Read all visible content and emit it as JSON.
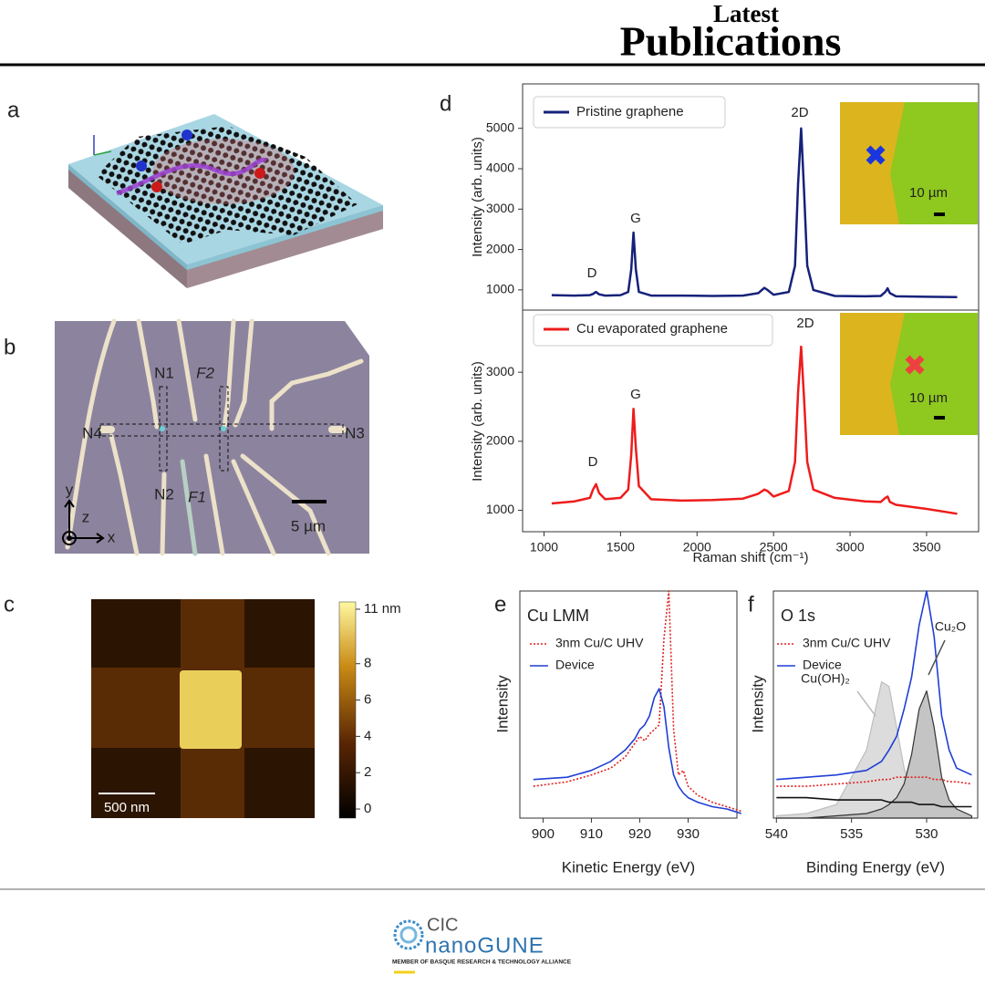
{
  "header": {
    "line1": "Latest",
    "line2": "Publications"
  },
  "panel_labels": [
    "a",
    "b",
    "c",
    "d",
    "e",
    "f"
  ],
  "panel_b": {
    "labels": [
      "N1",
      "F2",
      "N4",
      "N3",
      "N2",
      "F1"
    ],
    "scale": "5 µm",
    "axes": [
      "y",
      "z",
      "x"
    ]
  },
  "panel_c": {
    "scale": "500 nm",
    "colorbar": {
      "lim": [
        -0.5,
        11.4
      ],
      "ticks": [
        0,
        2,
        4,
        6,
        8,
        {
          "value": 11,
          "label": "11 nm"
        }
      ]
    }
  },
  "footer": {
    "brand_top": "CIC",
    "brand": "nanoGUNE",
    "tagline": "MEMBER OF BASQUE RESEARCH & TECHNOLOGY ALLIANCE"
  },
  "chart_data": [
    {
      "type": "line",
      "ylabel": "Intensity (arb. units)",
      "xlim": [
        860,
        3840
      ],
      "ylim": [
        500,
        6100
      ],
      "yticks": [
        1000,
        2000,
        3000,
        4000,
        5000
      ],
      "legend": "upper left",
      "x": [
        1050,
        1200,
        1300,
        1320,
        1340,
        1360,
        1400,
        1500,
        1550,
        1570,
        1585,
        1600,
        1620,
        1700,
        1900,
        2100,
        2300,
        2400,
        2440,
        2460,
        2500,
        2600,
        2640,
        2660,
        2680,
        2700,
        2720,
        2760,
        2900,
        3100,
        3200,
        3230,
        3245,
        3260,
        3300,
        3500,
        3700
      ],
      "series": [
        {
          "name": "Pristine graphene",
          "color": "#16217a",
          "values": [
            870,
            860,
            870,
            900,
            950,
            890,
            860,
            870,
            950,
            1500,
            2420,
            1500,
            950,
            860,
            860,
            850,
            860,
            920,
            1050,
            1000,
            880,
            950,
            1600,
            3600,
            5000,
            3400,
            1600,
            1000,
            850,
            840,
            850,
            950,
            1040,
            920,
            840,
            830,
            820
          ]
        }
      ],
      "annotations": [
        "D",
        "G",
        "2D",
        "10 µm"
      ]
    },
    {
      "type": "line",
      "ylabel": "Intensity (arb. units)",
      "xlabel": "Raman shift (cm⁻¹)",
      "xlim": [
        860,
        3840
      ],
      "ylim": [
        690,
        3900
      ],
      "xticks": [
        1000,
        1500,
        2000,
        2500,
        3000,
        3500
      ],
      "yticks": [
        1000,
        2000,
        3000
      ],
      "legend": "upper left",
      "x": [
        1050,
        1200,
        1300,
        1320,
        1340,
        1360,
        1400,
        1500,
        1550,
        1570,
        1585,
        1600,
        1620,
        1700,
        1900,
        2100,
        2300,
        2400,
        2440,
        2460,
        2500,
        2600,
        2640,
        2660,
        2680,
        2700,
        2720,
        2760,
        2900,
        3100,
        3200,
        3230,
        3245,
        3260,
        3300,
        3500,
        3700
      ],
      "series": [
        {
          "name": "Cu evaporated graphene",
          "color": "#ee1c1c",
          "values": [
            1100,
            1130,
            1180,
            1300,
            1380,
            1250,
            1160,
            1180,
            1300,
            1800,
            2470,
            1900,
            1350,
            1160,
            1140,
            1150,
            1170,
            1240,
            1300,
            1280,
            1200,
            1280,
            1700,
            2700,
            3370,
            2600,
            1700,
            1300,
            1180,
            1130,
            1120,
            1180,
            1200,
            1120,
            1080,
            1020,
            950
          ]
        }
      ],
      "annotations": [
        "D",
        "G",
        "2D",
        "10 µm"
      ]
    },
    {
      "type": "line",
      "title": "Cu LMM",
      "ylabel": "Intensity",
      "xlabel": "Kinetic Energy (eV)",
      "xlim": [
        895.2,
        940.1
      ],
      "ylim": [
        0,
        100
      ],
      "xticks": [
        900,
        910,
        920,
        930
      ],
      "legend": "upper left",
      "x": [
        898,
        905,
        910,
        914,
        917,
        919,
        920,
        921,
        922,
        923,
        924,
        925,
        926,
        927,
        928,
        929,
        930,
        932,
        935,
        938,
        941
      ],
      "series": [
        {
          "name": "3nm Cu/C UHV",
          "color": "#e02020",
          "style": "dotted",
          "values": [
            14,
            16,
            19,
            22,
            27,
            33,
            36,
            34,
            37,
            39,
            41,
            79,
            100,
            39,
            19,
            21,
            14,
            10,
            7,
            5,
            3
          ]
        },
        {
          "name": "Device",
          "color": "#1f3fd6",
          "values": [
            17,
            18,
            21,
            25,
            30,
            35,
            39,
            41,
            45,
            53,
            57,
            49,
            31,
            19,
            14,
            11,
            9,
            7,
            5,
            4,
            2
          ]
        }
      ]
    },
    {
      "type": "line",
      "title": "O 1s",
      "ylabel": "Intensity",
      "xlabel": "Binding Energy (eV)",
      "xlim": [
        540.2,
        526.6
      ],
      "ylim": [
        0,
        100
      ],
      "xticks": [
        540,
        535,
        530
      ],
      "legend": "upper left",
      "x": [
        540,
        538,
        536,
        534,
        533,
        532.5,
        532,
        531.5,
        531,
        530.5,
        530,
        529.5,
        529,
        528.5,
        528,
        527
      ],
      "series": [
        {
          "color": "#bdbdbd",
          "fill": "#dcdcdc",
          "values": [
            1,
            2,
            6,
            30,
            60,
            58,
            40,
            22,
            12,
            6,
            4,
            2,
            1,
            1,
            0,
            0
          ]
        },
        {
          "color": "#333333",
          "fill": "#c4c4c4",
          "values": [
            0,
            0,
            1,
            2,
            4,
            6,
            9,
            15,
            28,
            48,
            56,
            40,
            18,
            8,
            4,
            1
          ]
        },
        {
          "color": "#111111",
          "values": [
            9,
            9,
            8,
            8,
            8,
            7,
            7,
            7,
            7,
            6,
            6,
            6,
            5,
            5,
            5,
            5
          ]
        },
        {
          "name": "3nm Cu/C UHV",
          "color": "#e02020",
          "style": "dotted",
          "values": [
            14,
            14,
            15,
            16,
            17,
            17,
            18,
            18,
            18,
            18,
            18,
            17,
            17,
            16,
            16,
            15
          ]
        },
        {
          "name": "Device",
          "color": "#1f3fd6",
          "values": [
            17,
            18,
            19,
            21,
            25,
            30,
            36,
            48,
            62,
            85,
            100,
            80,
            45,
            30,
            22,
            19
          ]
        }
      ],
      "annotations": [
        "Cu(OH)₂",
        "Cu₂O"
      ]
    }
  ]
}
